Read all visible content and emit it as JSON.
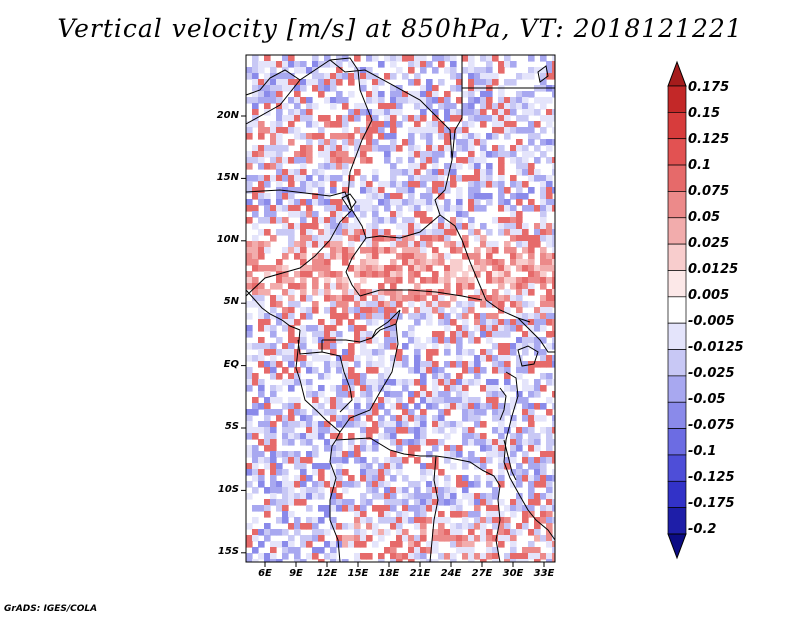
{
  "title": "Vertical velocity [m/s] at 850hPa, VT: 2018121221",
  "y_tick_labels": [
    "20N",
    "15N",
    "10N",
    "5N",
    "EQ",
    "5S",
    "10S",
    "15S"
  ],
  "x_tick_labels": [
    "6E",
    "9E",
    "12E",
    "15E",
    "18E",
    "21E",
    "24E",
    "27E",
    "30E",
    "33E"
  ],
  "colorbar": {
    "labels": [
      "0.175",
      "0.15",
      "0.125",
      "0.1",
      "0.075",
      "0.05",
      "0.025",
      "0.0125",
      "0.005",
      "-0.005",
      "-0.0125",
      "-0.025",
      "-0.05",
      "-0.075",
      "-0.1",
      "-0.125",
      "-0.175",
      "-0.2"
    ],
    "colors": [
      "#a51c1c",
      "#c32828",
      "#d73c3c",
      "#e25252",
      "#e66a6a",
      "#ec8a8a",
      "#f2acac",
      "#f8cdcd",
      "#fce8e8",
      "#ffffff",
      "#e4e4fb",
      "#c8c8f5",
      "#a8a8f0",
      "#8a8aea",
      "#6c6ce3",
      "#4e4ed8",
      "#3232c8",
      "#1e1ea8",
      "#0c0c84"
    ]
  },
  "footer": "GrADS: IGES/COLA"
}
